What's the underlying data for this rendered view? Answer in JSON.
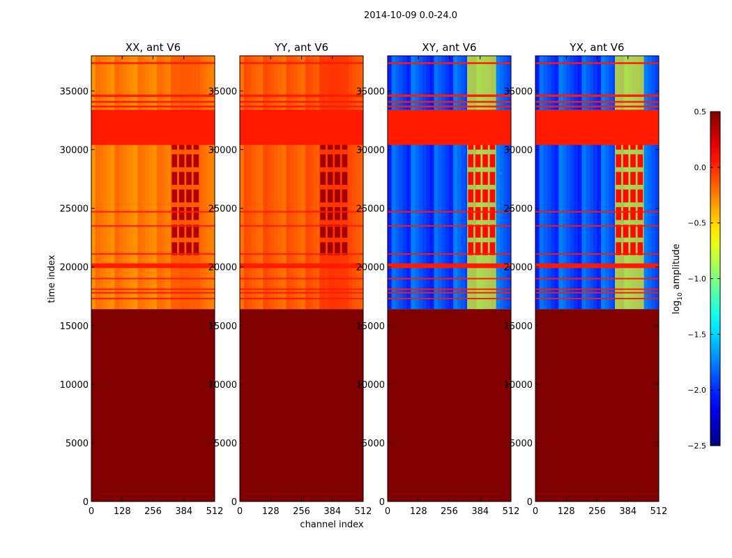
{
  "chart_data": {
    "type": "heatmap",
    "title": "2014-10-09 0.0-24.0",
    "xlabel": "channel index",
    "ylabel": "time index",
    "xlim": [
      0,
      512
    ],
    "ylim": [
      0,
      38000
    ],
    "x_ticks": [
      0,
      128,
      256,
      384,
      512
    ],
    "y_ticks": [
      0,
      5000,
      10000,
      15000,
      20000,
      25000,
      30000,
      35000
    ],
    "colorbar": {
      "label_prefix": "log",
      "label_sub": "10",
      "label_suffix": " amplitude",
      "range": [
        -2.5,
        0.5
      ],
      "ticks": [
        0.5,
        0.0,
        -0.5,
        -1.0,
        -1.5,
        -2.0,
        -2.5
      ],
      "tick_labels": [
        "0.5",
        "0.0",
        "−0.5",
        "−1.0",
        "−1.5",
        "−2.0",
        "−2.5"
      ],
      "colormap": "jet"
    },
    "panels": [
      {
        "title": "XX, ant V6",
        "base_level": -0.25,
        "hot_level": 0.35
      },
      {
        "title": "YY, ant V6",
        "base_level": -0.15,
        "hot_level": 0.4
      },
      {
        "title": "XY, ant V6",
        "base_level": -1.9,
        "hot_level": 0.1
      },
      {
        "title": "YX, ant V6",
        "base_level": -1.9,
        "hot_level": 0.1
      }
    ],
    "regions": {
      "flagged_below_time": 16400,
      "flagged_value": 0.5,
      "flag_band_value": 0.05,
      "flag_bands": [
        [
          30400,
          33400
        ],
        [
          19900,
          20300
        ],
        [
          37300,
          37450
        ],
        [
          34500,
          34700
        ],
        [
          34000,
          34150
        ],
        [
          33600,
          33750
        ]
      ],
      "thin_flag_lines": [
        31200,
        24700,
        23500,
        21100,
        19000,
        18100,
        17800,
        17300
      ],
      "hot_channel_range": [
        330,
        450
      ],
      "hot_time_range": [
        21000,
        30300
      ]
    }
  }
}
